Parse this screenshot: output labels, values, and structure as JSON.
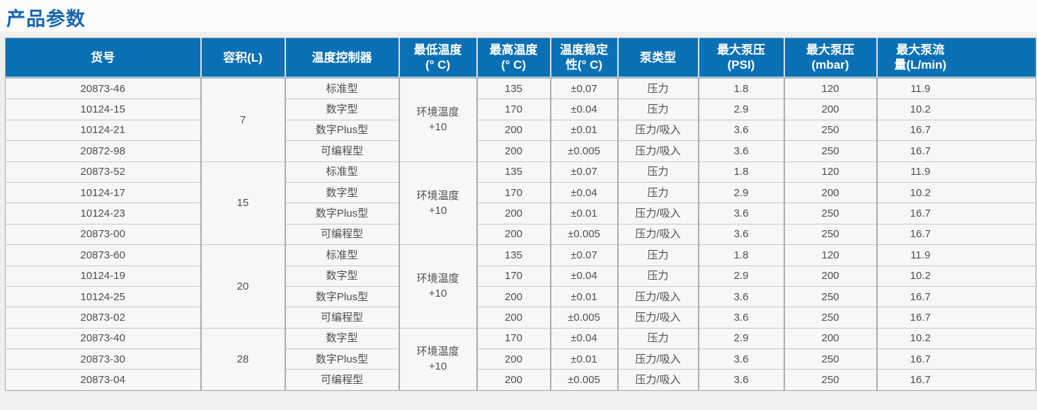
{
  "page_title": "产品参数",
  "colors": {
    "title_text": "#1565af",
    "header_bg": "#0a70b5",
    "header_text": "#ffffff",
    "row_bg": "#f7f7f7",
    "section_bg": "#efefef",
    "body_text": "#4f4f4f"
  },
  "table": {
    "headers": [
      "货号",
      "容积(L)",
      "温度控制器",
      "最低温度\n(° C)",
      "最高温度\n(° C)",
      "温度稳定\n性(° C)",
      "泵类型",
      "最大泵压\n(PSI)",
      "最大泵压\n(mbar)",
      "最大泵流\n量(L/min)"
    ],
    "groups": [
      {
        "volume": "7",
        "min_temp": "环境温度\n+10",
        "rows": [
          {
            "item": "20873-46",
            "controller": "标准型",
            "max_temp": "135",
            "stability": "±0.07",
            "pump_type": "压力",
            "psi": "1.8",
            "mbar": "120",
            "flow": "11.9"
          },
          {
            "item": "10124-15",
            "controller": "数字型",
            "max_temp": "170",
            "stability": "±0.04",
            "pump_type": "压力",
            "psi": "2.9",
            "mbar": "200",
            "flow": "10.2"
          },
          {
            "item": "10124-21",
            "controller": "数字Plus型",
            "max_temp": "200",
            "stability": "±0.01",
            "pump_type": "压力/吸入",
            "psi": "3.6",
            "mbar": "250",
            "flow": "16.7"
          },
          {
            "item": "20872-98",
            "controller": "可编程型",
            "max_temp": "200",
            "stability": "±0.005",
            "pump_type": "压力/吸入",
            "psi": "3.6",
            "mbar": "250",
            "flow": "16.7"
          }
        ]
      },
      {
        "volume": "15",
        "min_temp": "环境温度\n+10",
        "rows": [
          {
            "item": "20873-52",
            "controller": "标准型",
            "max_temp": "135",
            "stability": "±0.07",
            "pump_type": "压力",
            "psi": "1.8",
            "mbar": "120",
            "flow": "11.9"
          },
          {
            "item": "10124-17",
            "controller": "数字型",
            "max_temp": "170",
            "stability": "±0.04",
            "pump_type": "压力",
            "psi": "2.9",
            "mbar": "200",
            "flow": "10.2"
          },
          {
            "item": "10124-23",
            "controller": "数字Plus型",
            "max_temp": "200",
            "stability": "±0.01",
            "pump_type": "压力/吸入",
            "psi": "3.6",
            "mbar": "250",
            "flow": "16.7"
          },
          {
            "item": "20873-00",
            "controller": "可编程型",
            "max_temp": "200",
            "stability": "±0.005",
            "pump_type": "压力/吸入",
            "psi": "3.6",
            "mbar": "250",
            "flow": "16.7"
          }
        ]
      },
      {
        "volume": "20",
        "min_temp": "环境温度\n+10",
        "rows": [
          {
            "item": "20873-60",
            "controller": "标准型",
            "max_temp": "135",
            "stability": "±0.07",
            "pump_type": "压力",
            "psi": "1.8",
            "mbar": "120",
            "flow": "11.9"
          },
          {
            "item": "10124-19",
            "controller": "数字型",
            "max_temp": "170",
            "stability": "±0.04",
            "pump_type": "压力",
            "psi": "2.9",
            "mbar": "200",
            "flow": "10.2"
          },
          {
            "item": "10124-25",
            "controller": "数字Plus型",
            "max_temp": "200",
            "stability": "±0.01",
            "pump_type": "压力/吸入",
            "psi": "3.6",
            "mbar": "250",
            "flow": "16.7"
          },
          {
            "item": "20873-02",
            "controller": "可编程型",
            "max_temp": "200",
            "stability": "±0.005",
            "pump_type": "压力/吸入",
            "psi": "3.6",
            "mbar": "250",
            "flow": "16.7"
          }
        ]
      },
      {
        "volume": "28",
        "min_temp": "环境温度\n+10",
        "rows": [
          {
            "item": "20873-40",
            "controller": "数字型",
            "max_temp": "170",
            "stability": "±0.04",
            "pump_type": "压力",
            "psi": "2.9",
            "mbar": "200",
            "flow": "10.2"
          },
          {
            "item": "20873-30",
            "controller": "数字Plus型",
            "max_temp": "200",
            "stability": "±0.01",
            "pump_type": "压力/吸入",
            "psi": "3.6",
            "mbar": "250",
            "flow": "16.7"
          },
          {
            "item": "20873-04",
            "controller": "可编程型",
            "max_temp": "200",
            "stability": "±0.005",
            "pump_type": "压力/吸入",
            "psi": "3.6",
            "mbar": "250",
            "flow": "16.7"
          }
        ]
      }
    ]
  }
}
